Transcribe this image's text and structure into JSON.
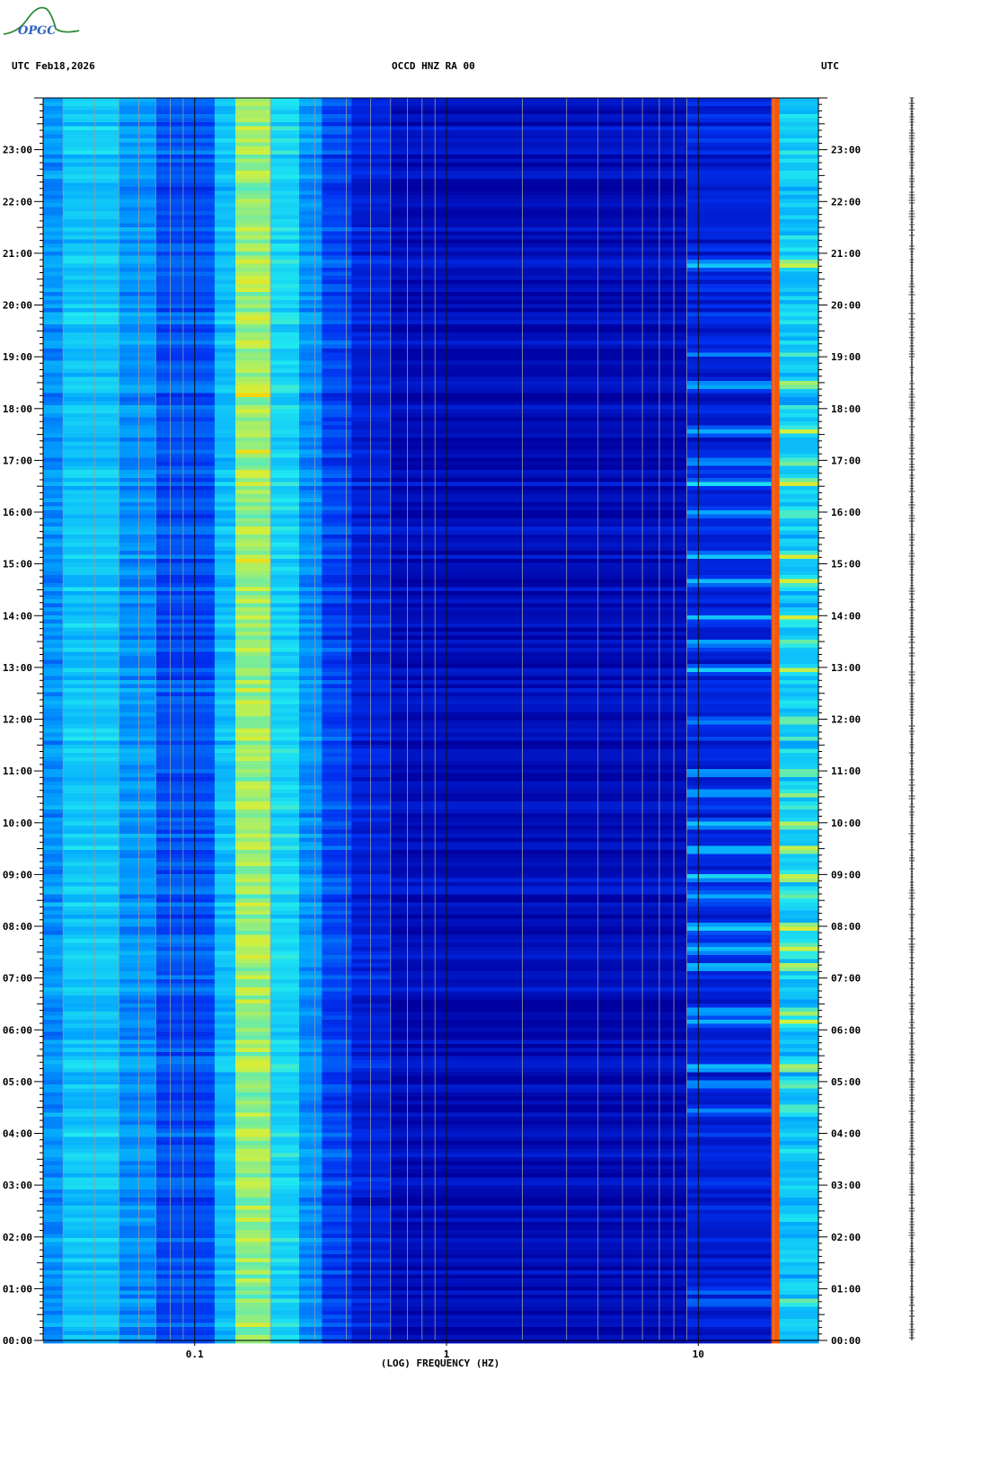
{
  "header": {
    "left_label": "UTC  Feb18,2026",
    "center_label": "OCCD HNZ RA 00",
    "right_label": "UTC"
  },
  "logo_text": "OPGC",
  "chart_data": {
    "type": "heatmap",
    "title": "OCCD HNZ RA 00",
    "date": "Feb18,2026",
    "xlabel": "(LOG) FREQUENCY (HZ)",
    "xscale": "log",
    "xlim": [
      0.025,
      30
    ],
    "x_tick_labels": [
      {
        "value": 0.1,
        "label": "0.1"
      },
      {
        "value": 1,
        "label": "1"
      },
      {
        "value": 10,
        "label": "10"
      }
    ],
    "ylabel_left": "UTC",
    "ylabel_right": "UTC",
    "ylim_hours": [
      0,
      24
    ],
    "y_tick_labels": [
      "00:00",
      "01:00",
      "02:00",
      "03:00",
      "04:00",
      "05:00",
      "06:00",
      "07:00",
      "08:00",
      "09:00",
      "10:00",
      "11:00",
      "12:00",
      "13:00",
      "14:00",
      "15:00",
      "16:00",
      "17:00",
      "18:00",
      "19:00",
      "20:00",
      "21:00",
      "22:00",
      "23:00"
    ],
    "colormap": [
      "#0000a0",
      "#0030f0",
      "#00a0ff",
      "#20e8f0",
      "#d0f040",
      "#ffd000",
      "#ff2000"
    ],
    "bands": [
      {
        "f_start": 0.025,
        "f_end": 0.03,
        "level": 0.32
      },
      {
        "f_start": 0.03,
        "f_end": 0.05,
        "level": 0.42
      },
      {
        "f_start": 0.05,
        "f_end": 0.07,
        "level": 0.32
      },
      {
        "f_start": 0.07,
        "f_end": 0.12,
        "level": 0.22
      },
      {
        "f_start": 0.12,
        "f_end": 0.145,
        "level": 0.4
      },
      {
        "f_start": 0.145,
        "f_end": 0.2,
        "level": 0.62
      },
      {
        "f_start": 0.2,
        "f_end": 0.26,
        "level": 0.46
      },
      {
        "f_start": 0.26,
        "f_end": 0.32,
        "level": 0.32
      },
      {
        "f_start": 0.32,
        "f_end": 0.42,
        "level": 0.2
      },
      {
        "f_start": 0.42,
        "f_end": 0.6,
        "level": 0.12
      },
      {
        "f_start": 0.6,
        "f_end": 9,
        "level": 0.05
      },
      {
        "f_start": 9,
        "f_end": 19.5,
        "level": 0.12
      },
      {
        "f_start": 19.5,
        "f_end": 21,
        "level": 0.95
      },
      {
        "f_start": 21,
        "f_end": 30,
        "level": 0.42
      }
    ],
    "hf_activity": [
      {
        "hour": 0.75,
        "level": 0.3
      },
      {
        "hour": 1.0,
        "level": 0.25
      },
      {
        "hour": 4.5,
        "level": 0.4
      },
      {
        "hour": 5.0,
        "level": 0.5
      },
      {
        "hour": 5.3,
        "level": 0.55
      },
      {
        "hour": 6.2,
        "level": 0.5
      },
      {
        "hour": 6.4,
        "level": 0.6
      },
      {
        "hour": 7.25,
        "level": 0.65
      },
      {
        "hour": 7.6,
        "level": 0.55
      },
      {
        "hour": 8.0,
        "level": 0.75
      },
      {
        "hour": 8.6,
        "level": 0.6
      },
      {
        "hour": 9.0,
        "level": 0.55
      },
      {
        "hour": 9.5,
        "level": 0.7
      },
      {
        "hour": 10.0,
        "level": 0.65
      },
      {
        "hour": 10.6,
        "level": 0.55
      },
      {
        "hour": 11.0,
        "level": 0.5
      },
      {
        "hour": 12.0,
        "level": 0.4
      },
      {
        "hour": 13.0,
        "level": 0.55
      },
      {
        "hour": 13.5,
        "level": 0.5
      },
      {
        "hour": 14.0,
        "level": 0.5
      },
      {
        "hour": 14.7,
        "level": 0.7
      },
      {
        "hour": 15.2,
        "level": 0.6
      },
      {
        "hour": 16.0,
        "level": 0.55
      },
      {
        "hour": 16.6,
        "level": 0.65
      },
      {
        "hour": 17.0,
        "level": 0.55
      },
      {
        "hour": 17.6,
        "level": 0.5
      },
      {
        "hour": 18.5,
        "level": 0.45
      },
      {
        "hour": 19.1,
        "level": 0.4
      },
      {
        "hour": 20.8,
        "level": 0.55
      }
    ],
    "lf_peaks": [
      {
        "hour": 0.3,
        "level": 0.8
      },
      {
        "hour": 6.6,
        "level": 0.82
      },
      {
        "hour": 13.5,
        "level": 0.85
      },
      {
        "hour": 14.5,
        "level": 0.9
      },
      {
        "hour": 15.1,
        "level": 0.8
      },
      {
        "hour": 17.2,
        "level": 0.82
      },
      {
        "hour": 18.3,
        "level": 0.85
      },
      {
        "hour": 19.8,
        "level": 0.9
      },
      {
        "hour": 20.5,
        "level": 0.85
      },
      {
        "hour": 21.0,
        "level": 0.88
      },
      {
        "hour": 22.0,
        "level": 0.82
      }
    ]
  }
}
